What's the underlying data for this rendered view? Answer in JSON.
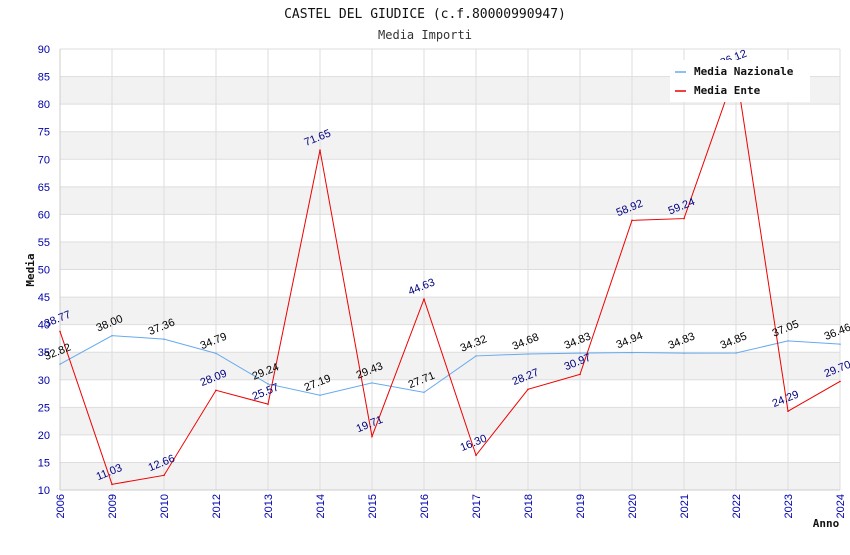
{
  "chart_data": {
    "type": "line",
    "title": "CASTEL DEL GIUDICE (c.f.80000990947)",
    "subtitle": "Media Importi",
    "xlabel": "Anno",
    "ylabel": "Media",
    "ylim": [
      10,
      90
    ],
    "yticks": [
      10,
      15,
      20,
      25,
      30,
      35,
      40,
      45,
      50,
      55,
      60,
      65,
      70,
      75,
      80,
      85,
      90
    ],
    "categories": [
      "2006",
      "2009",
      "2010",
      "2012",
      "2013",
      "2014",
      "2015",
      "2016",
      "2017",
      "2018",
      "2019",
      "2020",
      "2021",
      "2022",
      "2023",
      "2024"
    ],
    "series": [
      {
        "name": "Media Nazionale",
        "color": "#66aaee",
        "label_color": "#000000",
        "values": [
          32.82,
          38.0,
          37.36,
          34.79,
          29.24,
          27.19,
          29.43,
          27.71,
          34.32,
          34.68,
          34.83,
          34.94,
          34.83,
          34.85,
          37.05,
          36.46
        ],
        "labels": [
          "32.82",
          "38.00",
          "37.36",
          "34.79",
          "29.24",
          "27.19",
          "29.43",
          "27.71",
          "34.32",
          "34.68",
          "34.83",
          "34.94",
          "34.83",
          "34.85",
          "37.05",
          "36.46"
        ]
      },
      {
        "name": "Media Ente",
        "color": "#ee0000",
        "label_color": "#000080",
        "values": [
          38.77,
          11.03,
          12.66,
          28.09,
          25.57,
          71.65,
          19.71,
          44.63,
          16.3,
          28.27,
          30.97,
          58.92,
          59.24,
          86.12,
          24.29,
          29.7
        ],
        "labels": [
          "38.77",
          "11.03",
          "12.66",
          "28.09",
          "25.57",
          "71.65",
          "19.71",
          "44.63",
          "16.30",
          "28.27",
          "30.97",
          "58.92",
          "59.24",
          "86.12",
          "24.29",
          "29.70"
        ]
      }
    ],
    "legend_position": "top-right",
    "grid": true
  }
}
